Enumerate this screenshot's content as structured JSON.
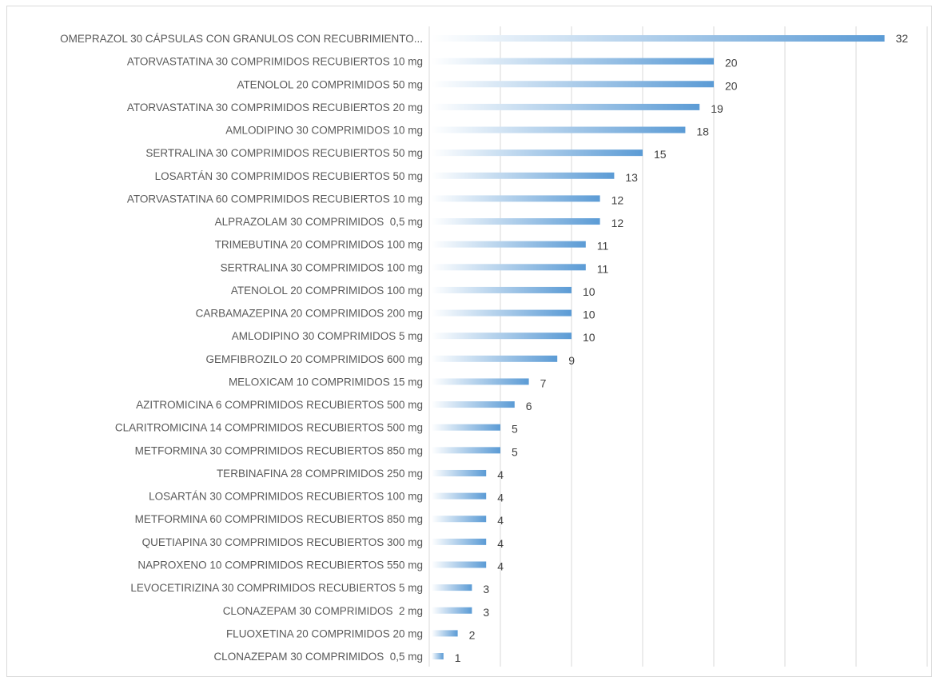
{
  "chart_data": {
    "type": "bar",
    "orientation": "horizontal",
    "title": "",
    "xlabel": "",
    "ylabel": "",
    "xlim": [
      0,
      35
    ],
    "grid": true,
    "legend": "none",
    "bar_gradient": [
      "#ffffff",
      "#5b9bd5"
    ],
    "categories": [
      "OMEPRAZOL 30 CÁPSULAS CON GRANULOS CON RECUBRIMIENTO...",
      "ATORVASTATINA 30 COMPRIMIDOS RECUBIERTOS 10 mg",
      "ATENOLOL 20 COMPRIMIDOS 50 mg",
      "ATORVASTATINA 30 COMPRIMIDOS RECUBIERTOS 20 mg",
      "AMLODIPINO 30 COMPRIMIDOS 10 mg",
      "SERTRALINA 30 COMPRIMIDOS RECUBIERTOS 50 mg",
      "LOSARTÁN 30 COMPRIMIDOS RECUBIERTOS 50 mg",
      "ATORVASTATINA 60 COMPRIMIDOS RECUBIERTOS 10 mg",
      "ALPRAZOLAM 30 COMPRIMIDOS  0,5 mg",
      "TRIMEBUTINA 20 COMPRIMIDOS 100 mg",
      "SERTRALINA 30 COMPRIMIDOS 100 mg",
      "ATENOLOL 20 COMPRIMIDOS 100 mg",
      "CARBAMAZEPINA 20 COMPRIMIDOS 200 mg",
      "AMLODIPINO 30 COMPRIMIDOS 5 mg",
      "GEMFIBROZILO 20 COMPRIMIDOS 600 mg",
      "MELOXICAM 10 COMPRIMIDOS 15 mg",
      "AZITROMICINA 6 COMPRIMIDOS RECUBIERTOS 500 mg",
      "CLARITROMICINA 14 COMPRIMIDOS RECUBIERTOS 500 mg",
      "METFORMINA 30 COMPRIMIDOS RECUBIERTOS 850 mg",
      "TERBINAFINA 28 COMPRIMIDOS 250 mg",
      "LOSARTÁN 30 COMPRIMIDOS RECUBIERTOS 100 mg",
      "METFORMINA 60 COMPRIMIDOS RECUBIERTOS 850 mg",
      "QUETIAPINA 30 COMPRIMIDOS RECUBIERTOS 300 mg",
      "NAPROXENO 10 COMPRIMIDOS RECUBIERTOS 550 mg",
      "LEVOCETIRIZINA 30 COMPRIMIDOS RECUBIERTOS 5 mg",
      "CLONAZEPAM 30 COMPRIMIDOS  2 mg",
      "FLUOXETINA 20 COMPRIMIDOS 20 mg",
      "CLONAZEPAM 30 COMPRIMIDOS  0,5 mg"
    ],
    "values": [
      32,
      20,
      20,
      19,
      18,
      15,
      13,
      12,
      12,
      11,
      11,
      10,
      10,
      10,
      9,
      7,
      6,
      5,
      5,
      4,
      4,
      4,
      4,
      4,
      3,
      3,
      2,
      1
    ]
  }
}
